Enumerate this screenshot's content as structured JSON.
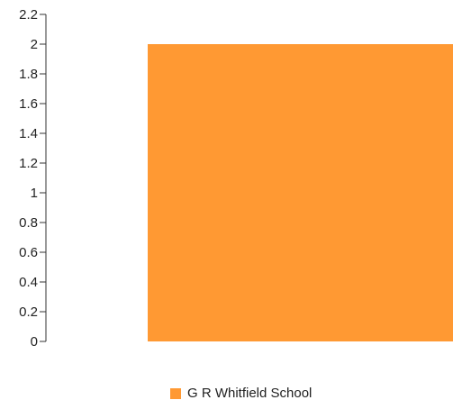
{
  "chart_data": {
    "type": "bar",
    "categories": [
      ""
    ],
    "series": [
      {
        "name": "G R Whitfield School",
        "values": [
          2
        ],
        "color": "#FF9933"
      }
    ],
    "title": "",
    "xlabel": "",
    "ylabel": "",
    "ylim": [
      0,
      2.2
    ],
    "yticks": [
      0,
      0.2,
      0.4,
      0.6,
      0.8,
      1,
      1.2,
      1.4,
      1.6,
      1.8,
      2,
      2.2
    ],
    "ytick_labels": [
      "0",
      "0.2",
      "0.4",
      "0.6",
      "0.8",
      "1",
      "1.2",
      "1.4",
      "1.6",
      "1.8",
      "2",
      "2.2"
    ],
    "grid": false,
    "legend_position": "bottom"
  }
}
